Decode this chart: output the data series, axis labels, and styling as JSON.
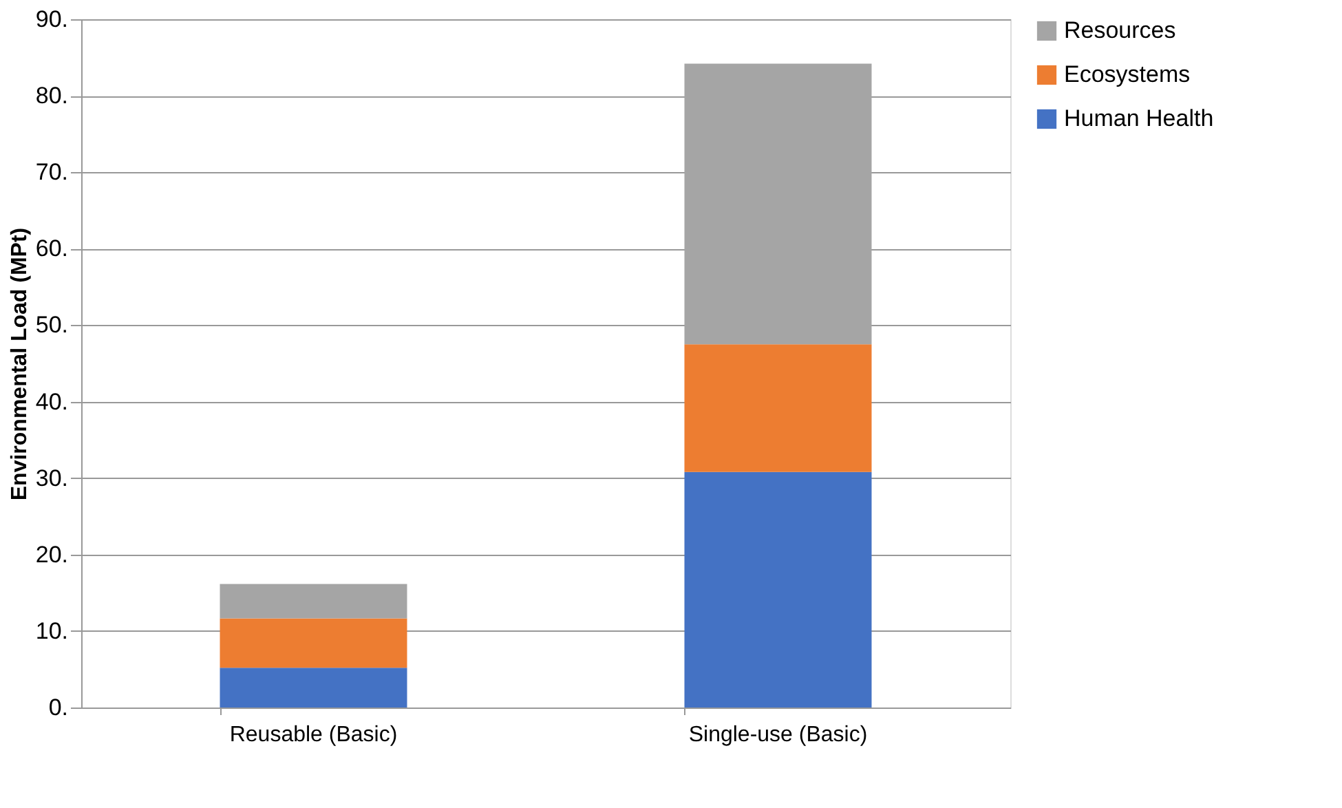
{
  "chart_data": {
    "type": "bar",
    "stacked": true,
    "ylabel": "Environmental Load (MPt)",
    "categories": [
      "Reusable (Basic)",
      "Single-use (Basic)"
    ],
    "series": [
      {
        "name": "Human Health",
        "color": "#4472c4",
        "values": [
          5.2,
          30.8
        ]
      },
      {
        "name": "Ecosystems",
        "color": "#ed7d31",
        "values": [
          6.45,
          16.7
        ]
      },
      {
        "name": "Resources",
        "color": "#a5a5a5",
        "values": [
          4.5,
          36.7
        ]
      }
    ],
    "ylim": [
      0,
      90
    ],
    "yticks": [
      {
        "value": 0,
        "label": "0."
      },
      {
        "value": 10,
        "label": "10."
      },
      {
        "value": 20,
        "label": "20."
      },
      {
        "value": 30,
        "label": "30."
      },
      {
        "value": 40,
        "label": "40."
      },
      {
        "value": 50,
        "label": "50."
      },
      {
        "value": 60,
        "label": "60."
      },
      {
        "value": 70,
        "label": "70."
      },
      {
        "value": 80,
        "label": "80."
      },
      {
        "value": 90,
        "label": "90."
      }
    ],
    "grid": "y",
    "legend": "right"
  }
}
